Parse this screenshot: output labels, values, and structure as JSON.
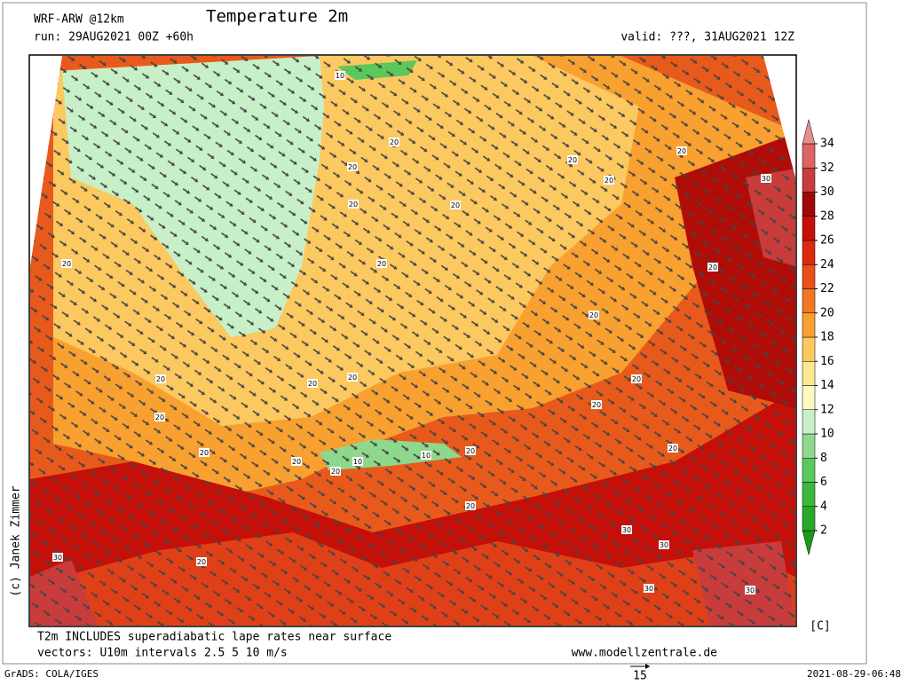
{
  "header": {
    "model": "WRF-ARW @12km",
    "run": "run: 29AUG2021 00Z +60h",
    "title": "Temperature 2m",
    "valid": "valid: ???, 31AUG2021 12Z"
  },
  "credit": "(c) Janek Zimmer",
  "colorbar": {
    "unit": "[C]",
    "ticks": [
      2,
      4,
      6,
      8,
      10,
      12,
      14,
      16,
      18,
      20,
      22,
      24,
      26,
      28,
      30,
      32,
      34
    ],
    "colors": [
      "#1a9a1a",
      "#2aa82a",
      "#3cb83c",
      "#5ac85a",
      "#8ed88e",
      "#c8f0c8",
      "#fcf8c0",
      "#fce890",
      "#fcc860",
      "#f8a030",
      "#f07820",
      "#e85018",
      "#dc2810",
      "#c41008",
      "#a00808",
      "#c83c3c",
      "#dc6464",
      "#e88c8c"
    ]
  },
  "contour_labels": [
    10,
    20,
    20,
    20,
    20,
    20,
    20,
    20,
    20,
    30,
    20,
    20,
    20,
    20,
    20,
    20,
    20,
    20,
    20,
    10,
    10,
    20,
    20,
    20,
    20,
    20,
    30,
    30,
    30,
    20,
    30,
    30,
    20
  ],
  "footer": {
    "note1": "T2m INCLUDES superadiabatic lape rates near surface",
    "note2": "vectors: U10m intervals 2.5 5 10 m/s",
    "site": "www.modellzentrale.de",
    "grads": "GrADS: COLA/IGES",
    "vector_ref": "15",
    "timestamp": "2021-08-29-06:48"
  }
}
